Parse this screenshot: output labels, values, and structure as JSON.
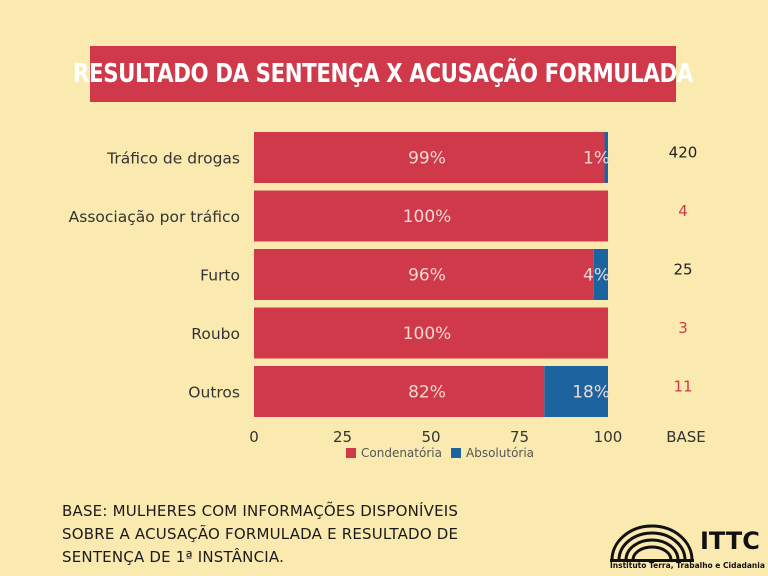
{
  "title": "RESULTADO DA SENTENÇA X ACUSAÇÃO FORMULADA",
  "colors": {
    "condenatoria": "#d0394a",
    "absolutoria": "#1c64a0",
    "background": "#fbeab0",
    "base_highlight": "#d0394a",
    "base_normal": "#222222"
  },
  "chart_data": {
    "type": "bar",
    "orientation": "horizontal",
    "stacked": true,
    "categories": [
      "Tráfico de drogas",
      "Associação por tráfico",
      "Furto",
      "Roubo",
      "Outros"
    ],
    "series": [
      {
        "name": "Condenatória",
        "values": [
          99,
          100,
          96,
          100,
          82
        ],
        "labels": [
          "99%",
          "100%",
          "96%",
          "100%",
          "82%"
        ]
      },
      {
        "name": "Absolutória",
        "values": [
          1,
          0,
          4,
          0,
          18
        ],
        "labels": [
          "1%",
          "",
          "4%",
          "",
          "18%"
        ]
      }
    ],
    "base_header": "BASE",
    "base_values": [
      "420",
      "4",
      "25",
      "3",
      "11"
    ],
    "base_highlight": [
      false,
      true,
      false,
      true,
      true
    ],
    "xticks": [
      "0",
      "25",
      "50",
      "75",
      "100"
    ],
    "xlim": [
      0,
      100
    ],
    "legend": [
      "Condenatória",
      "Absolutória"
    ],
    "legend_position": "bottom-center"
  },
  "footnote": {
    "lines": [
      "BASE: MULHERES COM INFORMAÇÕES DISPONÍVEIS",
      "SOBRE A ACUSAÇÃO FORMULADA E RESULTADO DE",
      "SENTENÇA DE 1ª INSTÂNCIA."
    ]
  },
  "logo": {
    "name": "ITTC",
    "subtitle": "Instituto Terra, Trabalho e Cidadania"
  }
}
